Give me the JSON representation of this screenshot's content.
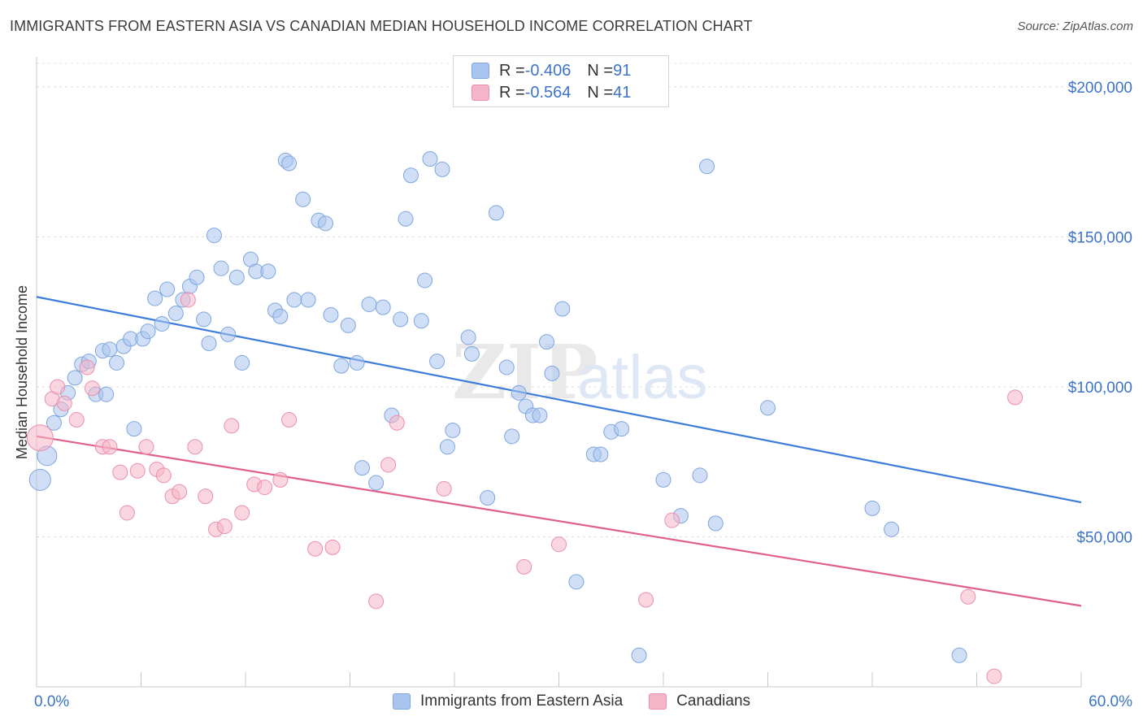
{
  "title": "IMMIGRANTS FROM EASTERN ASIA VS CANADIAN MEDIAN HOUSEHOLD INCOME CORRELATION CHART",
  "source": "Source: ZipAtlas.com",
  "watermark": {
    "bold": "ZIP",
    "light": "atlas"
  },
  "legend_top": {
    "rows": [
      {
        "r_label": "R = ",
        "r_value": "-0.406",
        "n_label": "N = ",
        "n_value": "91",
        "color": "#a9c4ee"
      },
      {
        "r_label": "R = ",
        "r_value": "-0.564",
        "n_label": "N = ",
        "n_value": "41",
        "color": "#f5b5c8"
      }
    ]
  },
  "legend_bottom": [
    {
      "label": "Immigrants from Eastern Asia",
      "color": "#a9c4ee"
    },
    {
      "label": "Canadians",
      "color": "#f5b5c8"
    }
  ],
  "chart_data": {
    "type": "scatter",
    "ylabel": "Median Household Income",
    "xlim": [
      0,
      60
    ],
    "ylim": [
      0,
      210000
    ],
    "x_tick_labels": [
      {
        "value": 0,
        "label": "0.0%"
      },
      {
        "value": 60,
        "label": "60.0%"
      }
    ],
    "y_tick_labels": [
      {
        "value": 50000,
        "label": "$50,000"
      },
      {
        "value": 100000,
        "label": "$100,000"
      },
      {
        "value": 150000,
        "label": "$150,000"
      },
      {
        "value": 200000,
        "label": "$200,000"
      }
    ],
    "grid": true,
    "series": [
      {
        "name": "Immigrants from Eastern Asia",
        "color": "#a9c4ee",
        "stroke": "#7ea6e0",
        "trend": {
          "x": [
            0,
            60
          ],
          "y": [
            130000,
            61500
          ],
          "color": "#3b7dd8"
        },
        "points": [
          [
            0.2,
            69000
          ],
          [
            0.6,
            77000
          ],
          [
            1.0,
            88000
          ],
          [
            1.4,
            92500
          ],
          [
            1.8,
            98000
          ],
          [
            2.2,
            103000
          ],
          [
            2.6,
            107500
          ],
          [
            3.0,
            108500
          ],
          [
            3.4,
            97500
          ],
          [
            3.8,
            112000
          ],
          [
            4.2,
            112500
          ],
          [
            4.6,
            108000
          ],
          [
            5.0,
            113500
          ],
          [
            5.4,
            116000
          ],
          [
            5.6,
            86000
          ],
          [
            6.1,
            116000
          ],
          [
            6.4,
            118500
          ],
          [
            6.8,
            129500
          ],
          [
            7.2,
            121000
          ],
          [
            7.5,
            132500
          ],
          [
            8.0,
            124500
          ],
          [
            8.4,
            129000
          ],
          [
            8.8,
            133500
          ],
          [
            9.2,
            136500
          ],
          [
            9.6,
            122500
          ],
          [
            9.9,
            114500
          ],
          [
            10.2,
            150500
          ],
          [
            10.6,
            139500
          ],
          [
            11.0,
            117500
          ],
          [
            11.5,
            136500
          ],
          [
            11.8,
            108000
          ],
          [
            12.3,
            142500
          ],
          [
            12.6,
            138500
          ],
          [
            13.3,
            138500
          ],
          [
            13.7,
            125500
          ],
          [
            14.0,
            123500
          ],
          [
            14.3,
            175500
          ],
          [
            14.5,
            174500
          ],
          [
            14.8,
            129000
          ],
          [
            15.3,
            162500
          ],
          [
            15.6,
            129000
          ],
          [
            16.2,
            155500
          ],
          [
            16.6,
            154500
          ],
          [
            16.9,
            124000
          ],
          [
            17.5,
            107000
          ],
          [
            17.9,
            120500
          ],
          [
            18.4,
            108000
          ],
          [
            18.7,
            73000
          ],
          [
            19.1,
            127500
          ],
          [
            19.5,
            68000
          ],
          [
            19.9,
            126500
          ],
          [
            20.4,
            90500
          ],
          [
            20.9,
            122500
          ],
          [
            21.2,
            156000
          ],
          [
            21.5,
            170500
          ],
          [
            22.1,
            122000
          ],
          [
            22.3,
            135500
          ],
          [
            22.6,
            176000
          ],
          [
            23.0,
            108500
          ],
          [
            23.3,
            172500
          ],
          [
            23.6,
            80000
          ],
          [
            23.9,
            85500
          ],
          [
            24.8,
            116500
          ],
          [
            25.0,
            111000
          ],
          [
            25.9,
            63000
          ],
          [
            26.4,
            158000
          ],
          [
            27.0,
            106500
          ],
          [
            27.3,
            83500
          ],
          [
            27.7,
            98000
          ],
          [
            28.1,
            93500
          ],
          [
            28.5,
            90500
          ],
          [
            28.9,
            90500
          ],
          [
            29.3,
            115000
          ],
          [
            29.6,
            104500
          ],
          [
            30.2,
            126000
          ],
          [
            31.0,
            35000
          ],
          [
            32.0,
            77500
          ],
          [
            32.4,
            77500
          ],
          [
            33.0,
            85000
          ],
          [
            33.6,
            86000
          ],
          [
            34.6,
            10500
          ],
          [
            36.0,
            69000
          ],
          [
            37.0,
            57000
          ],
          [
            38.1,
            70500
          ],
          [
            38.5,
            173500
          ],
          [
            39.0,
            54500
          ],
          [
            42.0,
            93000
          ],
          [
            48.0,
            59500
          ],
          [
            49.1,
            52500
          ],
          [
            53.0,
            10500
          ],
          [
            4.0,
            97500
          ]
        ]
      },
      {
        "name": "Canadians",
        "color": "#f5b5c8",
        "stroke": "#eb8fac",
        "trend": {
          "x": [
            0,
            60
          ],
          "y": [
            83500,
            27000
          ],
          "color": "#e0608a"
        },
        "points": [
          [
            0.2,
            83000
          ],
          [
            0.9,
            96000
          ],
          [
            1.2,
            100000
          ],
          [
            1.6,
            94500
          ],
          [
            2.3,
            89000
          ],
          [
            2.9,
            106500
          ],
          [
            3.2,
            99500
          ],
          [
            3.8,
            80000
          ],
          [
            4.2,
            80000
          ],
          [
            4.8,
            71500
          ],
          [
            5.2,
            58000
          ],
          [
            5.8,
            72000
          ],
          [
            6.3,
            80000
          ],
          [
            6.9,
            72500
          ],
          [
            7.3,
            70500
          ],
          [
            7.8,
            63500
          ],
          [
            8.2,
            65000
          ],
          [
            8.7,
            129000
          ],
          [
            9.1,
            80000
          ],
          [
            9.7,
            63500
          ],
          [
            10.3,
            52500
          ],
          [
            10.8,
            53500
          ],
          [
            11.2,
            87000
          ],
          [
            11.8,
            58000
          ],
          [
            12.5,
            67500
          ],
          [
            13.1,
            66500
          ],
          [
            14.0,
            69000
          ],
          [
            14.5,
            89000
          ],
          [
            16.0,
            46000
          ],
          [
            17.0,
            46500
          ],
          [
            19.5,
            28500
          ],
          [
            20.2,
            74000
          ],
          [
            20.7,
            88000
          ],
          [
            23.4,
            66000
          ],
          [
            28.0,
            40000
          ],
          [
            30.0,
            47500
          ],
          [
            35.0,
            29000
          ],
          [
            36.5,
            55500
          ],
          [
            53.5,
            30000
          ],
          [
            55.0,
            3500
          ],
          [
            56.2,
            96500
          ]
        ]
      }
    ]
  }
}
